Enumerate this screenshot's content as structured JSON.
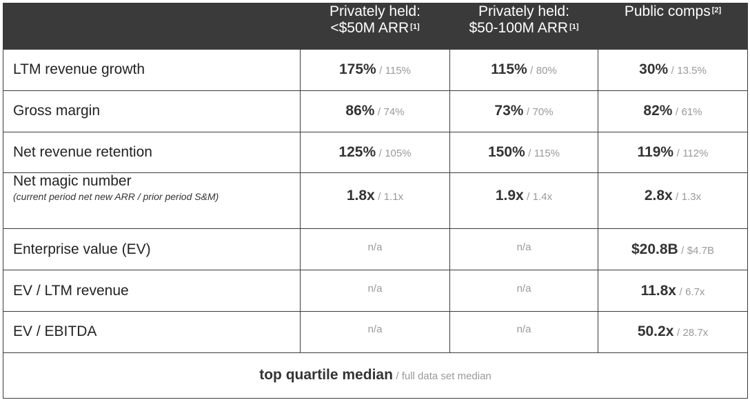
{
  "headers": [
    {
      "line1": "Privately held:",
      "line2": "<$50M ARR",
      "footnote": "[1]"
    },
    {
      "line1": "Privately held:",
      "line2": "$50-100M ARR",
      "footnote": "[1]"
    },
    {
      "line1": "Public comps",
      "line2": "",
      "footnote": "[2]"
    }
  ],
  "rows": [
    {
      "label": "LTM revenue growth",
      "sublabel": "",
      "cells": [
        {
          "top": "175%",
          "full": "115%"
        },
        {
          "top": "115%",
          "full": "80%"
        },
        {
          "top": "30%",
          "full": "13.5%"
        }
      ]
    },
    {
      "label": "Gross margin",
      "sublabel": "",
      "cells": [
        {
          "top": "86%",
          "full": "74%"
        },
        {
          "top": "73%",
          "full": "70%"
        },
        {
          "top": "82%",
          "full": "61%"
        }
      ]
    },
    {
      "label": "Net revenue retention",
      "sublabel": "",
      "cells": [
        {
          "top": "125%",
          "full": "105%"
        },
        {
          "top": "150%",
          "full": "115%"
        },
        {
          "top": "119%",
          "full": "112%"
        }
      ]
    },
    {
      "label": "Net magic number",
      "sublabel": "(current period net new ARR / prior period S&M)",
      "cells": [
        {
          "top": "1.8x",
          "full": "1.1x"
        },
        {
          "top": "1.9x",
          "full": "1.4x"
        },
        {
          "top": "2.8x",
          "full": "1.3x"
        }
      ]
    },
    {
      "label": "Enterprise value (EV)",
      "sublabel": "",
      "cells": [
        {
          "na": "n/a"
        },
        {
          "na": "n/a"
        },
        {
          "top": "$20.8B",
          "full": "$4.7B"
        }
      ]
    },
    {
      "label": "EV / LTM revenue",
      "sublabel": "",
      "cells": [
        {
          "na": "n/a"
        },
        {
          "na": "n/a"
        },
        {
          "top": "11.8x",
          "full": "6.7x"
        }
      ]
    },
    {
      "label": "EV / EBITDA",
      "sublabel": "",
      "cells": [
        {
          "na": "n/a"
        },
        {
          "na": "n/a"
        },
        {
          "top": "50.2x",
          "full": "28.7x"
        }
      ]
    }
  ],
  "separator": "/",
  "legend": {
    "bold": "top quartile median",
    "light": "/ full data set median"
  }
}
